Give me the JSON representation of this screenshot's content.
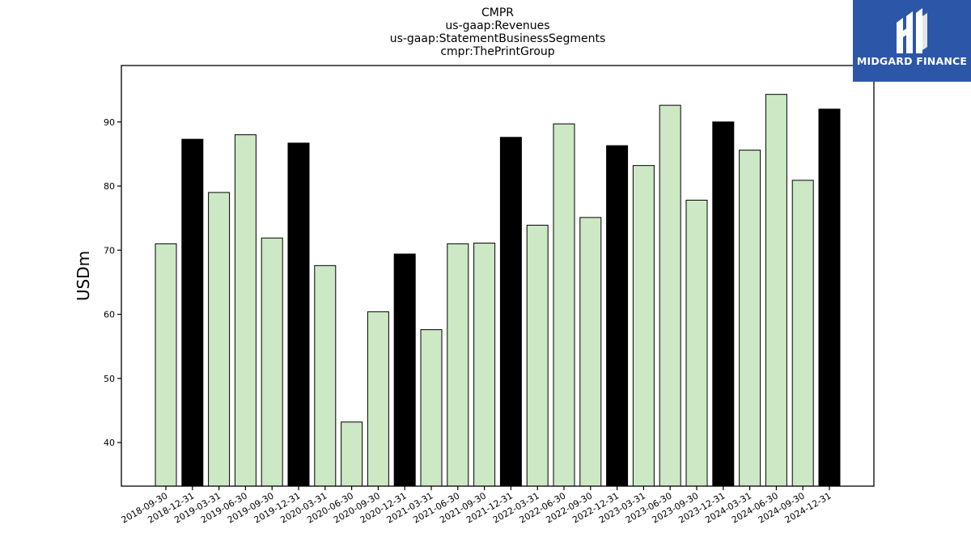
{
  "logo": {
    "text": "MIDGARD FINANCE",
    "icon": "midgard-finance-logo-mark"
  },
  "chart_data": {
    "type": "bar",
    "title_lines": [
      "CMPR",
      "us-gaap:Revenues",
      "us-gaap:StatementBusinessSegments",
      "cmpr:ThePrintGroup"
    ],
    "xlabel": "",
    "ylabel": "USDm",
    "ylim": [
      33.2,
      98.8
    ],
    "yticks": [
      40,
      50,
      60,
      70,
      80,
      90
    ],
    "grid": false,
    "categories": [
      "2018-09-30",
      "2018-12-31",
      "2019-03-31",
      "2019-06-30",
      "2019-09-30",
      "2019-12-31",
      "2020-03-31",
      "2020-06-30",
      "2020-09-30",
      "2020-12-31",
      "2021-03-31",
      "2021-06-30",
      "2021-09-30",
      "2021-12-31",
      "2022-03-31",
      "2022-06-30",
      "2022-09-30",
      "2022-12-31",
      "2023-03-31",
      "2023-06-30",
      "2023-09-30",
      "2023-12-31",
      "2024-03-31",
      "2024-06-30",
      "2024-09-30",
      "2024-12-31"
    ],
    "values": [
      71.0,
      87.3,
      79.0,
      88.0,
      71.9,
      86.7,
      67.6,
      43.2,
      60.4,
      69.4,
      57.6,
      71.0,
      71.1,
      87.6,
      73.9,
      89.7,
      75.1,
      86.3,
      83.2,
      92.6,
      77.8,
      90.0,
      85.6,
      94.3,
      80.9,
      92.0
    ],
    "colors": {
      "quarter": "#cce8c4",
      "year_end": "#000000",
      "edge": "#000000"
    }
  }
}
